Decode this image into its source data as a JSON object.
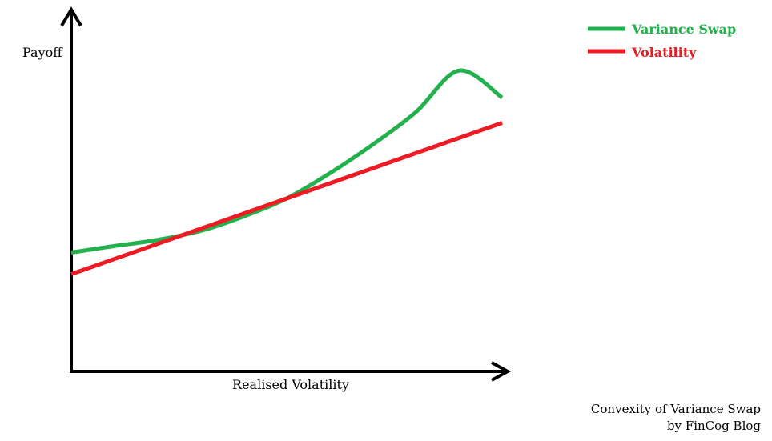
{
  "chart_data": {
    "type": "line",
    "title": "",
    "xlabel": "Realised Volatility",
    "ylabel": "Payoff",
    "xlim": [
      0,
      10
    ],
    "ylim": [
      0,
      10
    ],
    "grid": false,
    "legend_position": "top-right",
    "axis_ticks": false,
    "series": [
      {
        "name": "Variance Swap",
        "color": "#22b14c",
        "x": [
          0,
          1,
          2,
          3,
          4,
          5,
          6,
          7,
          8,
          9,
          10
        ],
        "y": [
          3.3,
          3.48,
          3.65,
          3.9,
          4.3,
          4.8,
          5.5,
          6.3,
          7.2,
          8.35,
          7.6
        ]
      },
      {
        "name": "Volatility",
        "color": "#ed1c24",
        "x": [
          0,
          10
        ],
        "y": [
          2.7,
          6.9
        ]
      }
    ]
  },
  "credit": {
    "line1": "Convexity of Variance Swap",
    "line2": "by FinCog Blog"
  }
}
